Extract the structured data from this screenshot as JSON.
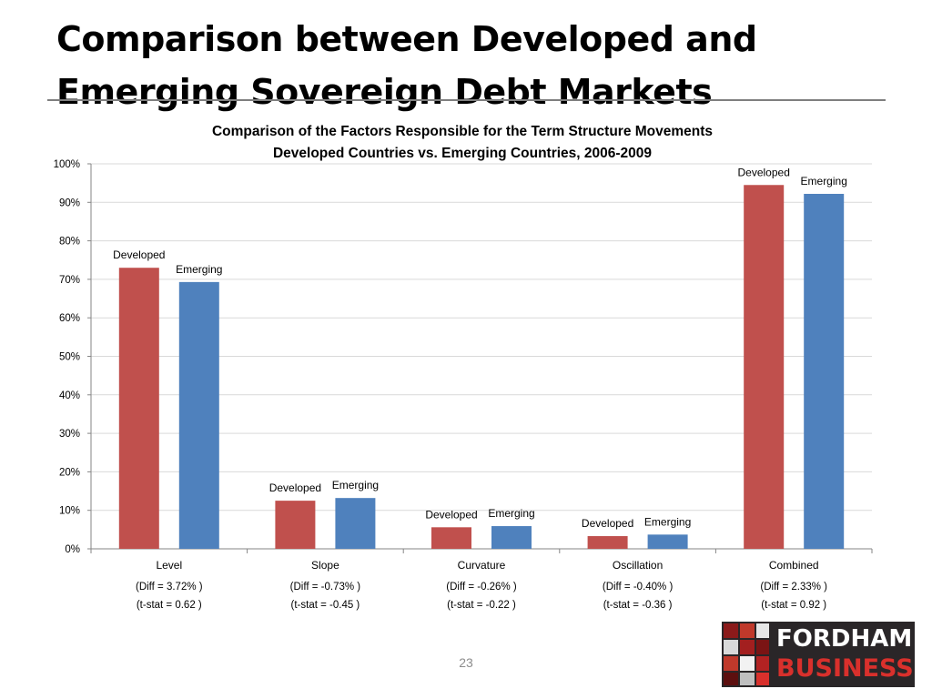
{
  "slide": {
    "title": "Comparison between Developed and Emerging Sovereign Debt Markets",
    "page_number": "23"
  },
  "logo": {
    "line1": "FORDHAM",
    "line2": "BUSINESS",
    "accent": "#d9302c"
  },
  "chart_data": {
    "type": "bar",
    "title": "Comparison of the Factors Responsible for the Term Structure Movements",
    "subtitle": "Developed Countries vs. Emerging Countries, 2006-2009",
    "categories": [
      "Level",
      "Slope",
      "Curvature",
      "Oscillation",
      "Combined"
    ],
    "category_notes": [
      [
        "(Diff = 3.72% )",
        "(t-stat = 0.62 )"
      ],
      [
        "(Diff = -0.73% )",
        "(t-stat = -0.45 )"
      ],
      [
        "(Diff = -0.26% )",
        "(t-stat = -0.22 )"
      ],
      [
        "(Diff = -0.40% )",
        "(t-stat = -0.36 )"
      ],
      [
        "(Diff = 2.33% )",
        "(t-stat = 0.92 )"
      ]
    ],
    "series": [
      {
        "name": "Developed",
        "color": "#c0504d",
        "values": [
          73.0,
          12.5,
          5.6,
          3.3,
          94.5
        ]
      },
      {
        "name": "Emerging",
        "color": "#4f81bd",
        "values": [
          69.3,
          13.2,
          5.9,
          3.7,
          92.2
        ]
      }
    ],
    "data_labels": [
      "Developed",
      "Emerging"
    ],
    "ylim": [
      0,
      100
    ],
    "yticks": [
      "0%",
      "10%",
      "20%",
      "30%",
      "40%",
      "50%",
      "60%",
      "70%",
      "80%",
      "90%",
      "100%"
    ],
    "grid": true,
    "xlabel": "",
    "ylabel": ""
  }
}
